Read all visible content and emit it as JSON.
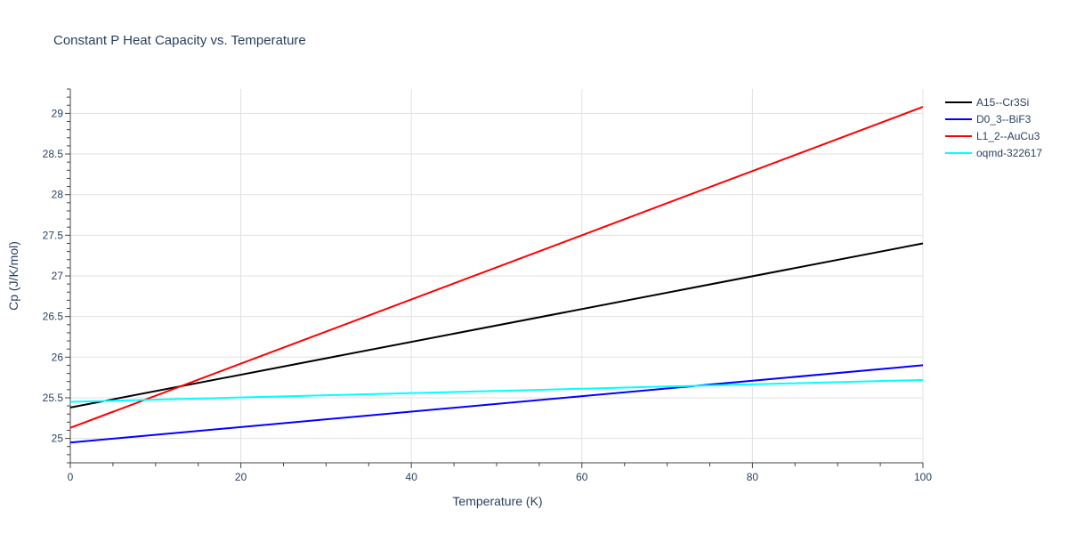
{
  "chart_data": {
    "type": "line",
    "title": "Constant P Heat Capacity vs. Temperature",
    "xlabel": "Temperature (K)",
    "ylabel": "Cp (J/K/mol)",
    "xlim": [
      0,
      100
    ],
    "ylim": [
      24.7,
      29.3
    ],
    "x_ticks": [
      0,
      20,
      40,
      60,
      80,
      100
    ],
    "y_ticks": [
      25,
      25.5,
      26,
      26.5,
      27,
      27.5,
      28,
      28.5,
      29
    ],
    "grid": true,
    "legend_position": "top-right",
    "series": [
      {
        "name": "A15--Cr3Si",
        "color": "#000000",
        "x": [
          0,
          100
        ],
        "y": [
          25.38,
          27.4
        ]
      },
      {
        "name": "D0_3--BiF3",
        "color": "#0000ff",
        "x": [
          0,
          100
        ],
        "y": [
          24.95,
          25.9
        ]
      },
      {
        "name": "L1_2--AuCu3",
        "color": "#ff0000",
        "x": [
          0,
          100
        ],
        "y": [
          25.13,
          29.08
        ]
      },
      {
        "name": "oqmd-322617",
        "color": "#00ffff",
        "x": [
          0,
          100
        ],
        "y": [
          25.45,
          25.72
        ]
      }
    ]
  }
}
